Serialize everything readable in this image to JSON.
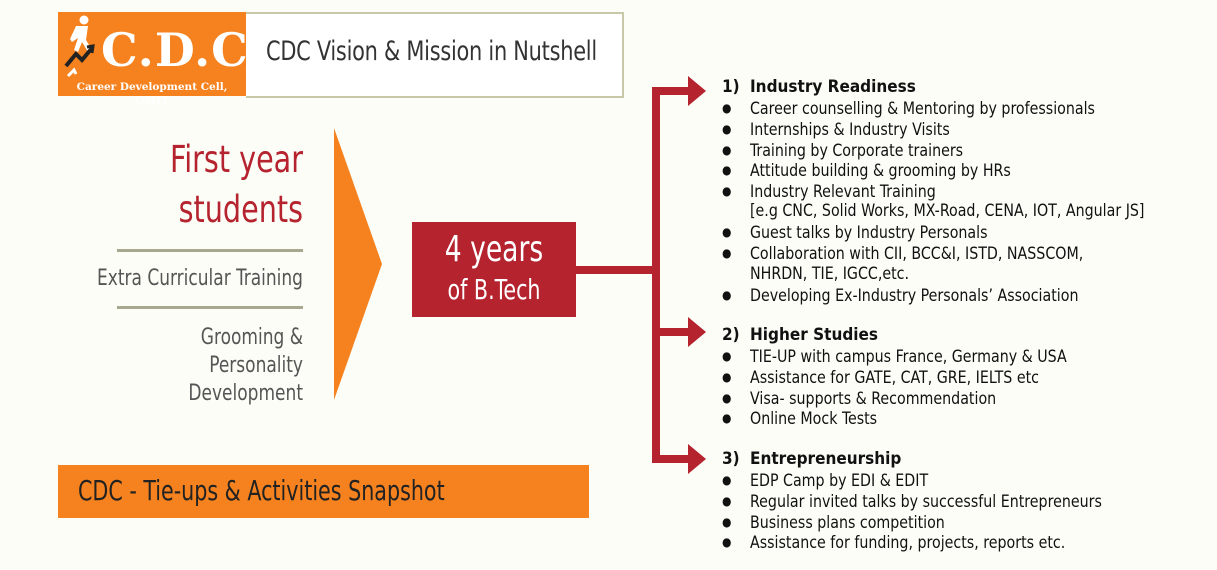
{
  "header": {
    "logo_text": "C.D.C.",
    "logo_subtitle": "Career Development Cell, GMIT",
    "title": "CDC Vision & Mission in Nutshell"
  },
  "left": {
    "heading_line1": "First year",
    "heading_line2": "students",
    "extra_curricular": "Extra Curricular Training",
    "grooming_line1": "Grooming &",
    "grooming_line2": "Personality",
    "grooming_line3": "Development"
  },
  "center": {
    "line1": "4 years",
    "line2": "of B.Tech"
  },
  "banner": {
    "text": "CDC - Tie-ups & Activities Snapshot"
  },
  "colors": {
    "orange": "#f5821f",
    "red": "#b5232f",
    "background": "#fdfdf7"
  },
  "sections": [
    {
      "number": "1)",
      "title": "Industry Readiness",
      "items": [
        "Career  counselling & Mentoring by professionals",
        "Internships & Industry  Visits",
        "Training by Corporate trainers",
        "Attitude building & grooming by HRs",
        "Industry Relevant Training",
        "Guest talks by Industry Personals",
        "Collaboration with CII, BCC&I, ISTD, NASSCOM,",
        "Developing  Ex-Industry Personals’ Association"
      ],
      "continuations": [
        "[e.g CNC, Solid Works, MX-Road, CENA, IOT, Angular JS]",
        "NHRDN, TIE, IGCC,etc."
      ]
    },
    {
      "number": "2)",
      "title": "Higher Studies",
      "items": [
        "TIE-UP with campus France, Germany & USA",
        "Assistance for GATE, CAT, GRE, IELTS etc",
        "Visa- supports & Recommendation",
        "Online Mock Tests"
      ]
    },
    {
      "number": "3)",
      "title": "Entrepreneurship",
      "items": [
        "EDP Camp by EDI & EDIT",
        "Regular invited talks by successful Entrepreneurs",
        "Business plans competition",
        "Assistance for funding, projects, reports etc."
      ]
    }
  ],
  "bullet_icon": "bullet-dot-icon"
}
